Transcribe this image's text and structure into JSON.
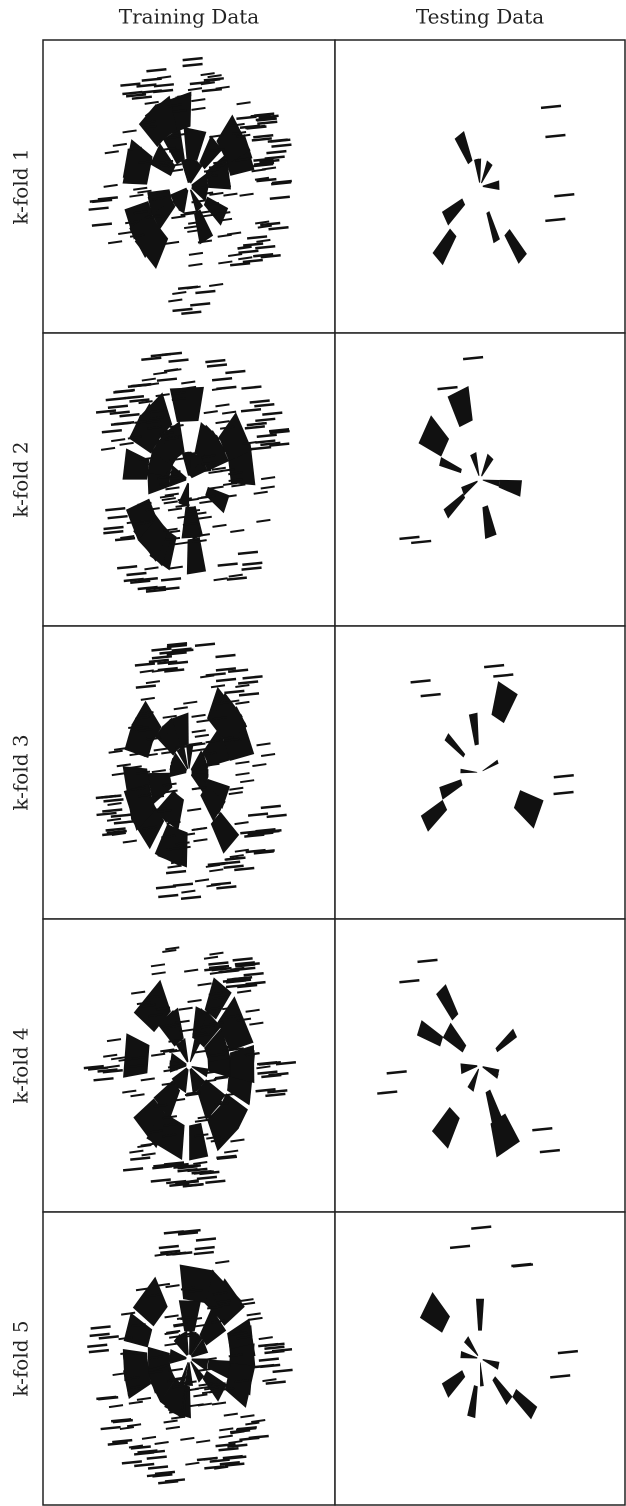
{
  "columns": [
    "Training Data",
    "Testing Data"
  ],
  "rows": [
    "k-fold 1",
    "k-fold 2",
    "k-fold 3",
    "k-fold 4",
    "k-fold 5"
  ]
}
